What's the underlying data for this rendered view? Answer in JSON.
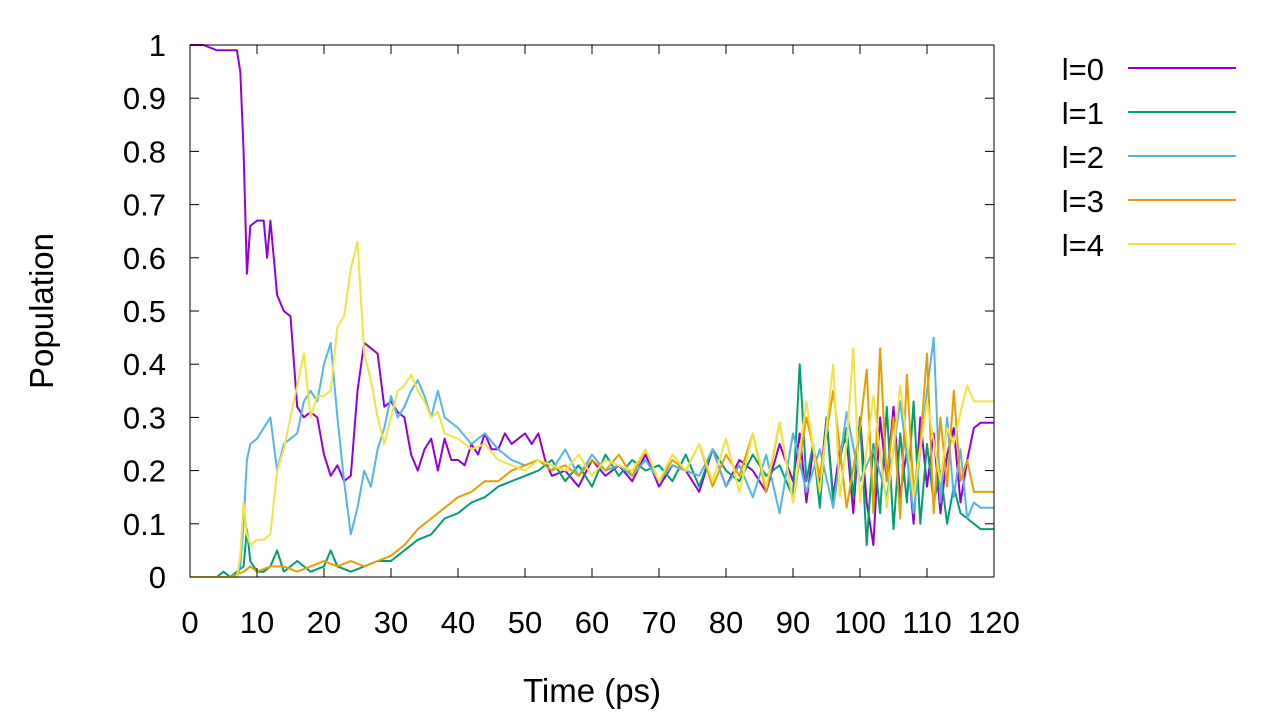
{
  "chart_data": {
    "type": "line",
    "title": "",
    "xlabel": "Time (ps)",
    "ylabel": "Population",
    "xlim": [
      0,
      120
    ],
    "ylim": [
      0,
      1
    ],
    "xticks": [
      0,
      10,
      20,
      30,
      40,
      50,
      60,
      70,
      80,
      90,
      100,
      110,
      120
    ],
    "yticks": [
      0,
      0.1,
      0.2,
      0.3,
      0.4,
      0.5,
      0.6,
      0.7,
      0.8,
      0.9,
      1
    ],
    "grid": false,
    "legend_position": "outside-top-right",
    "series": [
      {
        "name": "l=0",
        "color": "#9400d3",
        "x": [
          0,
          2,
          4,
          5,
          6,
          7,
          7.5,
          8,
          8.5,
          9,
          10,
          11,
          11.5,
          12,
          12.5,
          13,
          14,
          15,
          16,
          17,
          18,
          19,
          20,
          21,
          22,
          23,
          24,
          25,
          26,
          27,
          28,
          29,
          30,
          31,
          32,
          33,
          34,
          35,
          36,
          37,
          38,
          39,
          40,
          41,
          42,
          43,
          44,
          45,
          46,
          47,
          48,
          49,
          50,
          51,
          52,
          53,
          54,
          56,
          58,
          60,
          62,
          64,
          66,
          68,
          70,
          72,
          74,
          76,
          78,
          80,
          82,
          84,
          86,
          88,
          90,
          91,
          92,
          93,
          94,
          95,
          96,
          97,
          98,
          99,
          100,
          101,
          102,
          103,
          104,
          105,
          106,
          107,
          108,
          109,
          110,
          111,
          112,
          113,
          114,
          115,
          116,
          117,
          118,
          119,
          120
        ],
        "values": [
          1.0,
          1.0,
          0.99,
          0.99,
          0.99,
          0.99,
          0.95,
          0.8,
          0.57,
          0.66,
          0.67,
          0.67,
          0.6,
          0.67,
          0.6,
          0.53,
          0.5,
          0.49,
          0.32,
          0.3,
          0.31,
          0.3,
          0.23,
          0.19,
          0.21,
          0.18,
          0.19,
          0.35,
          0.44,
          0.43,
          0.42,
          0.32,
          0.33,
          0.31,
          0.3,
          0.23,
          0.2,
          0.24,
          0.26,
          0.2,
          0.26,
          0.22,
          0.22,
          0.21,
          0.25,
          0.23,
          0.27,
          0.24,
          0.24,
          0.27,
          0.25,
          0.26,
          0.27,
          0.25,
          0.27,
          0.22,
          0.19,
          0.2,
          0.17,
          0.22,
          0.19,
          0.21,
          0.18,
          0.23,
          0.17,
          0.21,
          0.2,
          0.16,
          0.24,
          0.17,
          0.22,
          0.2,
          0.16,
          0.25,
          0.18,
          0.27,
          0.14,
          0.24,
          0.17,
          0.3,
          0.15,
          0.24,
          0.26,
          0.12,
          0.3,
          0.14,
          0.06,
          0.3,
          0.18,
          0.32,
          0.15,
          0.24,
          0.1,
          0.3,
          0.17,
          0.27,
          0.12,
          0.23,
          0.28,
          0.14,
          0.22,
          0.28,
          0.29,
          0.29,
          0.29
        ]
      },
      {
        "name": "l=1",
        "color": "#009e73",
        "x": [
          0,
          2,
          4,
          5,
          6,
          7,
          8,
          8.5,
          9,
          10,
          11,
          12,
          13,
          14,
          15,
          16,
          18,
          20,
          21,
          22,
          24,
          26,
          28,
          30,
          32,
          34,
          36,
          38,
          40,
          42,
          44,
          46,
          48,
          50,
          52,
          54,
          56,
          58,
          60,
          62,
          64,
          66,
          68,
          70,
          72,
          74,
          76,
          78,
          80,
          82,
          84,
          86,
          88,
          90,
          91,
          92,
          93,
          94,
          95,
          96,
          97,
          98,
          99,
          100,
          101,
          102,
          103,
          104,
          105,
          106,
          107,
          108,
          109,
          110,
          111,
          112,
          113,
          114,
          115,
          116,
          117,
          118,
          119,
          120
        ],
        "values": [
          0.0,
          0.0,
          0.0,
          0.01,
          0.0,
          0.01,
          0.02,
          0.09,
          0.03,
          0.01,
          0.01,
          0.02,
          0.05,
          0.01,
          0.02,
          0.03,
          0.01,
          0.02,
          0.05,
          0.02,
          0.01,
          0.02,
          0.03,
          0.03,
          0.05,
          0.07,
          0.08,
          0.11,
          0.12,
          0.14,
          0.15,
          0.17,
          0.18,
          0.19,
          0.2,
          0.22,
          0.18,
          0.21,
          0.17,
          0.23,
          0.19,
          0.22,
          0.2,
          0.21,
          0.18,
          0.23,
          0.17,
          0.24,
          0.2,
          0.18,
          0.23,
          0.19,
          0.21,
          0.15,
          0.4,
          0.18,
          0.25,
          0.13,
          0.3,
          0.14,
          0.22,
          0.28,
          0.15,
          0.3,
          0.06,
          0.25,
          0.12,
          0.32,
          0.09,
          0.27,
          0.14,
          0.33,
          0.1,
          0.25,
          0.14,
          0.2,
          0.1,
          0.17,
          0.12,
          0.11,
          0.1,
          0.09,
          0.09,
          0.09
        ]
      },
      {
        "name": "l=2",
        "color": "#56b4e9",
        "x": [
          0,
          2,
          4,
          6,
          7,
          7.5,
          8,
          8.5,
          9,
          10,
          11,
          12,
          13,
          14,
          15,
          16,
          17,
          18,
          19,
          20,
          21,
          22,
          23,
          24,
          25,
          26,
          27,
          28,
          29,
          30,
          31,
          32,
          33,
          34,
          35,
          36,
          37,
          38,
          40,
          42,
          44,
          46,
          48,
          50,
          52,
          54,
          56,
          58,
          60,
          62,
          64,
          66,
          68,
          70,
          72,
          74,
          76,
          78,
          80,
          82,
          84,
          86,
          88,
          90,
          92,
          94,
          96,
          98,
          100,
          102,
          104,
          106,
          108,
          110,
          111,
          112,
          113,
          114,
          115,
          116,
          117,
          118,
          119,
          120
        ],
        "values": [
          0.0,
          0.0,
          0.0,
          0.0,
          0.0,
          0.02,
          0.1,
          0.22,
          0.25,
          0.26,
          0.28,
          0.3,
          0.2,
          0.25,
          0.26,
          0.27,
          0.33,
          0.35,
          0.33,
          0.4,
          0.44,
          0.3,
          0.18,
          0.08,
          0.13,
          0.2,
          0.17,
          0.24,
          0.28,
          0.34,
          0.3,
          0.32,
          0.35,
          0.37,
          0.34,
          0.3,
          0.35,
          0.3,
          0.28,
          0.25,
          0.27,
          0.24,
          0.22,
          0.21,
          0.22,
          0.2,
          0.24,
          0.19,
          0.23,
          0.2,
          0.21,
          0.19,
          0.22,
          0.18,
          0.21,
          0.2,
          0.19,
          0.24,
          0.17,
          0.21,
          0.15,
          0.23,
          0.12,
          0.27,
          0.16,
          0.24,
          0.13,
          0.31,
          0.18,
          0.24,
          0.15,
          0.33,
          0.12,
          0.35,
          0.45,
          0.14,
          0.3,
          0.15,
          0.24,
          0.11,
          0.14,
          0.13,
          0.13,
          0.13
        ]
      },
      {
        "name": "l=3",
        "color": "#e69f00",
        "x": [
          0,
          2,
          4,
          6,
          8,
          9,
          10,
          12,
          14,
          16,
          18,
          20,
          22,
          24,
          26,
          28,
          30,
          32,
          34,
          36,
          38,
          40,
          42,
          44,
          46,
          48,
          50,
          52,
          54,
          56,
          58,
          60,
          62,
          64,
          66,
          68,
          70,
          72,
          74,
          76,
          78,
          80,
          82,
          84,
          86,
          88,
          90,
          92,
          94,
          96,
          98,
          100,
          101,
          102,
          103,
          104,
          105,
          106,
          107,
          108,
          109,
          110,
          111,
          112,
          113,
          114,
          115,
          116,
          117,
          118,
          119,
          120
        ],
        "values": [
          0.0,
          0.0,
          0.0,
          0.0,
          0.01,
          0.02,
          0.01,
          0.02,
          0.02,
          0.01,
          0.02,
          0.03,
          0.02,
          0.03,
          0.02,
          0.03,
          0.04,
          0.06,
          0.09,
          0.11,
          0.13,
          0.15,
          0.16,
          0.18,
          0.18,
          0.2,
          0.21,
          0.22,
          0.2,
          0.21,
          0.19,
          0.22,
          0.2,
          0.23,
          0.19,
          0.24,
          0.18,
          0.22,
          0.2,
          0.25,
          0.17,
          0.23,
          0.19,
          0.27,
          0.16,
          0.29,
          0.14,
          0.3,
          0.19,
          0.35,
          0.13,
          0.28,
          0.39,
          0.12,
          0.43,
          0.18,
          0.3,
          0.11,
          0.38,
          0.16,
          0.25,
          0.42,
          0.12,
          0.3,
          0.17,
          0.35,
          0.18,
          0.22,
          0.16,
          0.16,
          0.16,
          0.16
        ]
      },
      {
        "name": "l=4",
        "color": "#f0e442",
        "x": [
          0,
          2,
          4,
          6,
          7,
          7.5,
          8,
          8.5,
          9,
          10,
          11,
          12,
          13,
          14,
          15,
          16,
          17,
          18,
          19,
          20,
          21,
          22,
          23,
          24,
          25,
          26,
          27,
          28,
          29,
          30,
          31,
          32,
          33,
          34,
          35,
          36,
          37,
          38,
          40,
          42,
          44,
          46,
          48,
          50,
          52,
          54,
          56,
          58,
          60,
          62,
          64,
          66,
          68,
          70,
          72,
          74,
          76,
          78,
          80,
          82,
          84,
          86,
          88,
          90,
          92,
          94,
          96,
          97,
          98,
          99,
          100,
          102,
          104,
          106,
          108,
          110,
          112,
          113,
          114,
          115,
          116,
          117,
          118,
          119,
          120
        ],
        "values": [
          0.0,
          0.0,
          0.0,
          0.0,
          0.0,
          0.04,
          0.14,
          0.08,
          0.06,
          0.07,
          0.07,
          0.08,
          0.2,
          0.24,
          0.3,
          0.36,
          0.42,
          0.3,
          0.34,
          0.34,
          0.35,
          0.47,
          0.49,
          0.58,
          0.63,
          0.42,
          0.37,
          0.3,
          0.25,
          0.3,
          0.35,
          0.36,
          0.38,
          0.35,
          0.33,
          0.3,
          0.31,
          0.27,
          0.26,
          0.24,
          0.25,
          0.22,
          0.21,
          0.2,
          0.22,
          0.21,
          0.2,
          0.23,
          0.19,
          0.22,
          0.21,
          0.2,
          0.24,
          0.18,
          0.23,
          0.2,
          0.25,
          0.18,
          0.26,
          0.16,
          0.27,
          0.17,
          0.29,
          0.14,
          0.33,
          0.16,
          0.4,
          0.15,
          0.25,
          0.43,
          0.14,
          0.34,
          0.13,
          0.36,
          0.15,
          0.33,
          0.18,
          0.28,
          0.25,
          0.31,
          0.36,
          0.33,
          0.33,
          0.33,
          0.33
        ]
      }
    ]
  }
}
